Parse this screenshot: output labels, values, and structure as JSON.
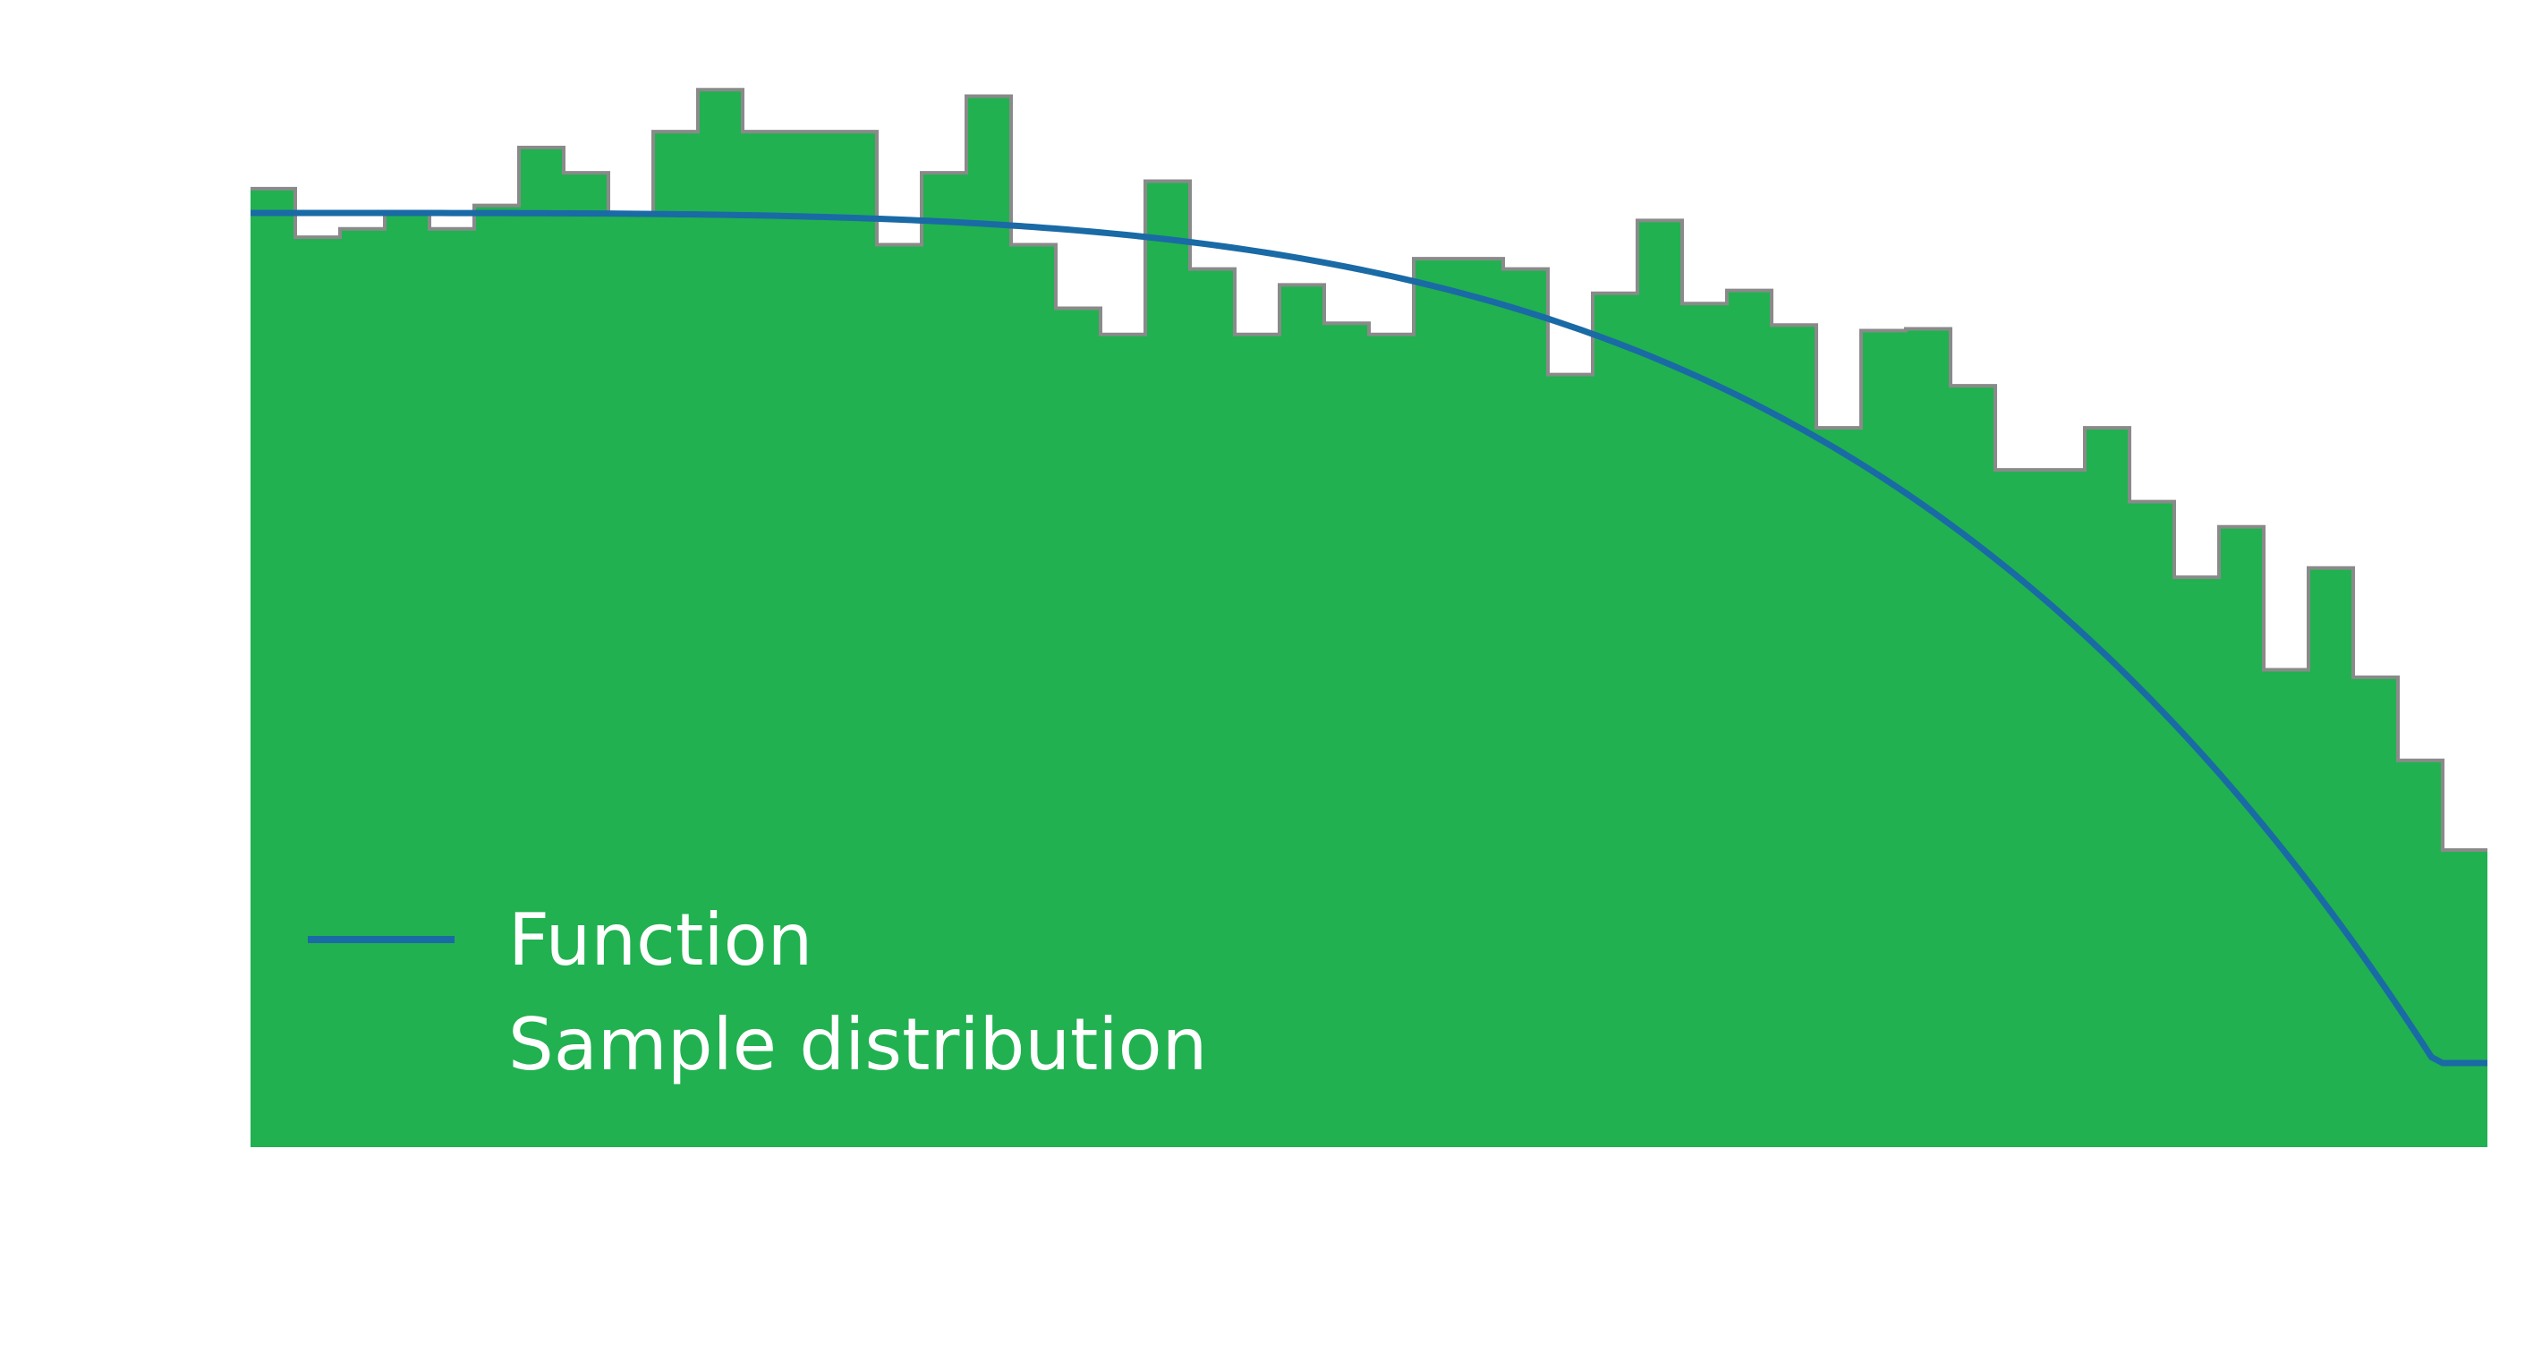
{
  "chart_data": {
    "type": "bar",
    "title": "",
    "xlabel": "",
    "ylabel": "",
    "xlim": [
      0,
      1
    ],
    "ylim": [
      0,
      1.2
    ],
    "grid": false,
    "legend": {
      "placement": "bottom-left",
      "entries": [
        {
          "label": "Function",
          "kind": "line"
        },
        {
          "label": "Sample distribution",
          "kind": "patch"
        }
      ]
    },
    "colors": {
      "function_line": "#1a6aa6",
      "histogram_fill": "#21b150",
      "histogram_edge": "#8a8a8a",
      "background": "#ffffff"
    },
    "series": [
      {
        "name": "Function",
        "type": "line",
        "formula": "1 - x^4",
        "x": [
          0.0,
          0.05,
          0.1,
          0.15,
          0.2,
          0.25,
          0.3,
          0.35,
          0.4,
          0.45,
          0.5,
          0.55,
          0.6,
          0.65,
          0.7,
          0.75,
          0.8,
          0.85,
          0.9,
          0.95,
          1.0
        ],
        "values": [
          1.0,
          1.0,
          1.0,
          0.999,
          0.998,
          0.996,
          0.992,
          0.985,
          0.974,
          0.959,
          0.938,
          0.908,
          0.87,
          0.821,
          0.76,
          0.684,
          0.59,
          0.478,
          0.344,
          0.185,
          0.0
        ]
      },
      {
        "name": "Sample distribution",
        "type": "histogram",
        "bin_start": 0.0,
        "bin_width": 0.02,
        "values": [
          1.026,
          0.974,
          0.983,
          1.0,
          0.983,
          1.008,
          1.07,
          1.043,
          1.0,
          1.087,
          1.132,
          1.087,
          1.087,
          1.087,
          0.966,
          1.043,
          1.125,
          0.966,
          0.898,
          0.87,
          1.034,
          0.94,
          0.87,
          0.923,
          0.882,
          0.87,
          0.951,
          0.951,
          0.94,
          0.827,
          0.914,
          0.992,
          0.903,
          0.917,
          0.88,
          0.77,
          0.874,
          0.876,
          0.815,
          0.725,
          0.725,
          0.77,
          0.691,
          0.61,
          0.664,
          0.511,
          0.62,
          0.503,
          0.414,
          0.318
        ]
      }
    ]
  }
}
